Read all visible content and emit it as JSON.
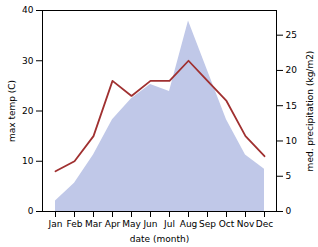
{
  "chart_data": {
    "type": "line",
    "categories": [
      "Jan",
      "Feb",
      "Mar",
      "Apr",
      "May",
      "Jun",
      "Jul",
      "Aug",
      "Sep",
      "Oct",
      "Nov",
      "Dec"
    ],
    "xlabel": "date (month)",
    "ylabel": "max temp (C)",
    "y2label": "med. precipitation (kg/m2)",
    "ylim": [
      0,
      40
    ],
    "yticks": [
      0,
      10,
      20,
      30,
      40
    ],
    "y2lim": [
      0,
      28.5
    ],
    "y2ticks": [
      0,
      5,
      10,
      15,
      20,
      25
    ],
    "grid": false,
    "series": [
      {
        "type": "area",
        "axis": "y2",
        "color": "#c0c8e8",
        "values": [
          1.5,
          4,
          8,
          13,
          16,
          18,
          17,
          27,
          20,
          13,
          8,
          6
        ]
      },
      {
        "type": "line",
        "color": "#a03030",
        "values": [
          8,
          10,
          15,
          26,
          23,
          26,
          26,
          30,
          26,
          22,
          15,
          11
        ]
      }
    ]
  }
}
